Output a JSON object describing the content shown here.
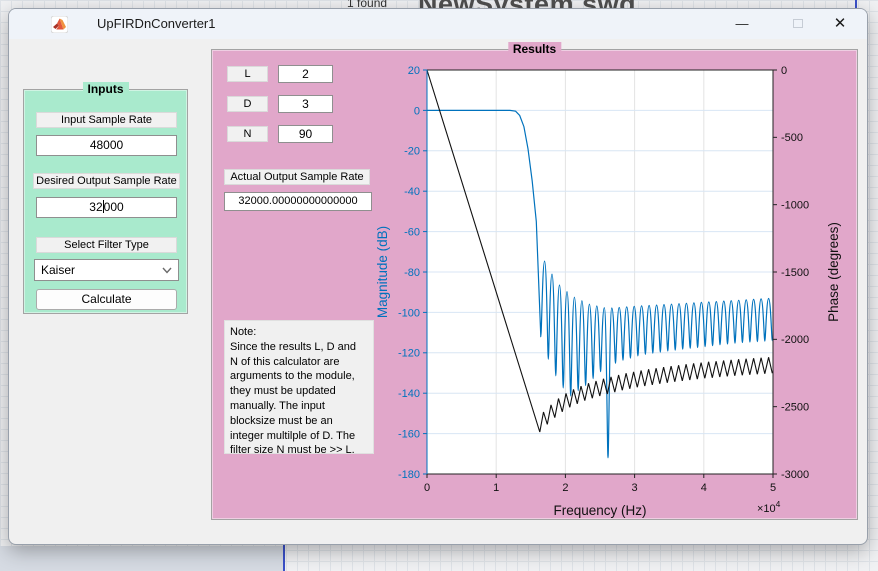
{
  "background": {
    "search_result_text": "1 found",
    "canvas_title": "NewSystem.swd"
  },
  "window": {
    "title": "UpFIRDnConverter1",
    "controls": {
      "minimize": "—",
      "close": "✕"
    }
  },
  "inputs_panel": {
    "title": "Inputs",
    "input_sample_rate": {
      "label": "Input Sample Rate",
      "value": "48000"
    },
    "desired_output_sample_rate": {
      "label": "Desired Output Sample Rate",
      "value_before_caret": "32",
      "value_after_caret": "000"
    },
    "filter_type": {
      "label": "Select Filter Type",
      "selected": "Kaiser"
    },
    "calculate_label": "Calculate"
  },
  "results_panel": {
    "title": "Results",
    "fields": [
      {
        "label": "L",
        "value": "2"
      },
      {
        "label": "D",
        "value": "3"
      },
      {
        "label": "N",
        "value": "90"
      }
    ],
    "actual_output": {
      "label": "Actual Output Sample Rate",
      "value": "32000.00000000000000"
    },
    "note": "Note:\nSince the results L, D and\nN of this calculator are\narguments to the module,\nthey must be updated\nmanually. The input\nblocksize must be an\ninteger multilple of D. The\nfilter size N must be >> L."
  },
  "chart_data": {
    "type": "line",
    "title": "",
    "xlabel": "Frequency (Hz)",
    "x_multiplier": "×10",
    "x_multiplier_exp": "4",
    "xlim": [
      0,
      50000
    ],
    "x_ticks": [
      0,
      1,
      2,
      3,
      4,
      5
    ],
    "grid": true,
    "left_axis": {
      "label": "Magnitude (dB)",
      "color": "#0072bd",
      "ylim": [
        -180,
        20
      ],
      "ticks": [
        20,
        0,
        -20,
        -40,
        -60,
        -80,
        -100,
        -120,
        -140,
        -160,
        -180
      ]
    },
    "right_axis": {
      "label": "Phase (degrees)",
      "color": "#111111",
      "ylim": [
        -3000,
        0
      ],
      "ticks": [
        0,
        -500,
        -1000,
        -1500,
        -2000,
        -2500,
        -3000
      ]
    },
    "series": [
      {
        "name": "Magnitude (dB)",
        "axis": "left",
        "color": "#0072bd",
        "passband_points": [
          [
            0,
            0
          ],
          [
            12000,
            0
          ],
          [
            12800,
            -0.4
          ],
          [
            13400,
            -2.5
          ],
          [
            14000,
            -8
          ],
          [
            14600,
            -19
          ],
          [
            15200,
            -35
          ],
          [
            15800,
            -55
          ],
          [
            16450,
            -112
          ]
        ],
        "sidelobes": {
          "start": 16450,
          "end": 49900,
          "count": 31,
          "peak_envelope": [
            [
              16450,
              -71
            ],
            [
              17500,
              -78
            ],
            [
              19000,
              -86
            ],
            [
              21000,
              -92
            ],
            [
              23500,
              -96
            ],
            [
              26000,
              -98
            ],
            [
              30000,
              -97
            ],
            [
              35000,
              -96
            ],
            [
              40000,
              -95
            ],
            [
              45000,
              -94
            ],
            [
              49900,
              -93
            ]
          ],
          "null_envelope": [
            [
              16450,
              -112
            ],
            [
              18000,
              -128
            ],
            [
              20500,
              -142
            ],
            [
              23000,
              -136
            ],
            [
              25500,
              -128
            ],
            [
              28000,
              -124
            ],
            [
              31000,
              -121
            ],
            [
              35000,
              -119
            ],
            [
              40000,
              -117
            ],
            [
              45000,
              -115
            ],
            [
              49900,
              -114
            ]
          ],
          "deep_null": {
            "freq": 26300,
            "db": -172
          }
        }
      },
      {
        "name": "Phase (degrees)",
        "axis": "right",
        "color": "#111111",
        "linear_points": [
          [
            0,
            0
          ],
          [
            16300,
            -2688
          ]
        ],
        "sawtooth": {
          "start": 16300,
          "end": 49900,
          "count": 31,
          "tooth_height": 120,
          "base_envelope": [
            [
              16300,
              -2688
            ],
            [
              18000,
              -2600
            ],
            [
              20000,
              -2520
            ],
            [
              22500,
              -2460
            ],
            [
              25000,
              -2420
            ],
            [
              28000,
              -2380
            ],
            [
              31000,
              -2350
            ],
            [
              35000,
              -2320
            ],
            [
              40000,
              -2290
            ],
            [
              45000,
              -2268
            ],
            [
              49900,
              -2252
            ]
          ]
        }
      }
    ]
  }
}
